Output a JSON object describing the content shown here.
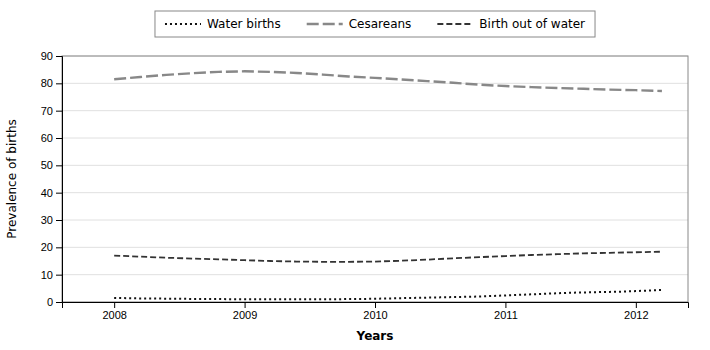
{
  "chart_data": {
    "type": "line",
    "x_label": "Years",
    "y_label": "Prevalence of births",
    "xlim": [
      2007.6,
      2012.4
    ],
    "xticks": [
      2008,
      2009,
      2010,
      2011,
      2012
    ],
    "ylim": [
      0,
      90
    ],
    "yticks": [
      0,
      10,
      20,
      30,
      40,
      50,
      60,
      70,
      80,
      90
    ],
    "grid": true,
    "legend": "top",
    "series": [
      {
        "name": "Water births",
        "color": "#111111",
        "line_style": "dotted",
        "x": [
          2008.0,
          2008.1,
          2008.2,
          2008.3,
          2008.4,
          2008.5,
          2008.6,
          2008.7,
          2008.8,
          2008.9,
          2009.0,
          2009.1,
          2009.2,
          2009.3,
          2009.4,
          2009.5,
          2009.6,
          2009.7,
          2009.8,
          2009.9,
          2010.0,
          2010.1,
          2010.2,
          2010.3,
          2010.4,
          2010.5,
          2010.6,
          2010.7,
          2010.8,
          2010.9,
          2011.0,
          2011.1,
          2011.2,
          2011.3,
          2011.4,
          2011.5,
          2011.6,
          2011.7,
          2011.8,
          2011.9,
          2012.0,
          2012.1,
          2012.2
        ],
        "values": [
          1.5,
          1.4,
          1.3,
          1.3,
          1.2,
          1.2,
          1.1,
          1.1,
          1.1,
          1.0,
          1.0,
          1.0,
          1.0,
          1.0,
          1.0,
          1.0,
          1.0,
          1.0,
          1.1,
          1.1,
          1.2,
          1.3,
          1.4,
          1.5,
          1.6,
          1.7,
          1.8,
          1.9,
          2.0,
          2.2,
          2.4,
          2.6,
          2.8,
          3.0,
          3.2,
          3.4,
          3.5,
          3.6,
          3.7,
          3.8,
          4.0,
          4.2,
          4.4
        ]
      },
      {
        "name": "Cesareans",
        "color": "#888888",
        "line_style": "long-dash",
        "x": [
          2008.0,
          2008.2,
          2008.4,
          2008.6,
          2008.8,
          2009.0,
          2009.2,
          2009.4,
          2009.6,
          2009.8,
          2010.0,
          2010.2,
          2010.4,
          2010.6,
          2010.8,
          2011.0,
          2011.2,
          2011.4,
          2011.6,
          2011.8,
          2012.0,
          2012.2
        ],
        "values": [
          81.5,
          82.3,
          83.1,
          83.7,
          84.2,
          84.4,
          84.2,
          83.8,
          83.2,
          82.5,
          82.0,
          81.4,
          80.8,
          80.2,
          79.5,
          79.0,
          78.6,
          78.3,
          78.0,
          77.7,
          77.5,
          77.2
        ]
      },
      {
        "name": "Birth out of water",
        "color": "#333333",
        "line_style": "dashed",
        "x": [
          2008.0,
          2008.2,
          2008.4,
          2008.6,
          2008.8,
          2009.0,
          2009.2,
          2009.4,
          2009.6,
          2009.8,
          2010.0,
          2010.2,
          2010.4,
          2010.6,
          2010.8,
          2011.0,
          2011.2,
          2011.4,
          2011.6,
          2011.8,
          2012.0,
          2012.2
        ],
        "values": [
          17.0,
          16.6,
          16.2,
          15.9,
          15.6,
          15.3,
          15.0,
          14.8,
          14.7,
          14.7,
          14.8,
          15.1,
          15.5,
          16.0,
          16.4,
          16.8,
          17.2,
          17.5,
          17.8,
          18.0,
          18.2,
          18.4
        ]
      }
    ]
  }
}
